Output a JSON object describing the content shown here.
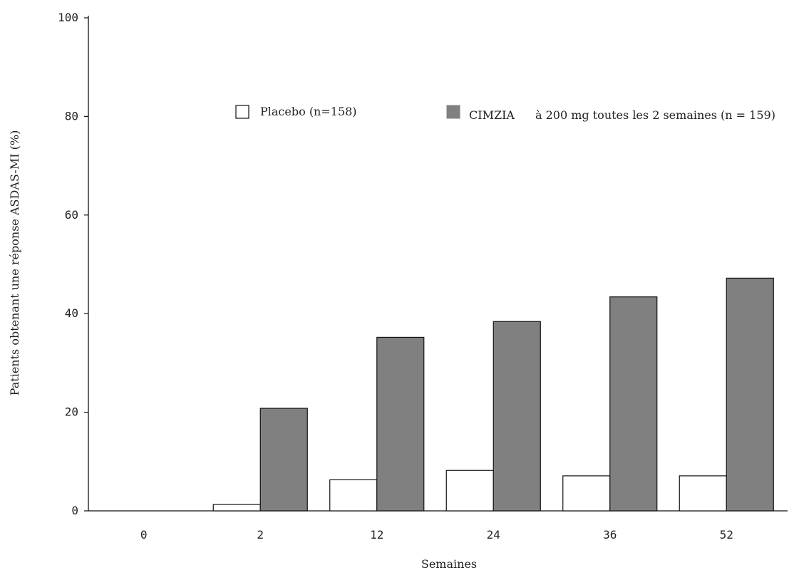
{
  "chart_data": {
    "type": "bar",
    "title": "",
    "xlabel": "Semaines",
    "ylabel": "Patients obtenant une réponse ASDAS-MI (%)",
    "categories": [
      "0",
      "2",
      "12",
      "24",
      "36",
      "52"
    ],
    "yticks": [
      "0",
      "20",
      "40",
      "60",
      "80",
      "100"
    ],
    "ylim": [
      0,
      100
    ],
    "grid": false,
    "legend_position": "top",
    "series": [
      {
        "name": "Placebo (n=158)",
        "values": [
          0,
          1.3,
          6.3,
          8.2,
          7.1,
          7.1
        ],
        "color": "#ffffff",
        "stroke": "#111111"
      },
      {
        "name": "CIMZIA à 200 mg toutes les 2 semaines (n = 159)",
        "values": [
          0,
          20.8,
          35.2,
          38.4,
          43.4,
          47.2
        ],
        "color": "#808080",
        "stroke": "#111111"
      }
    ]
  },
  "legend": {
    "placebo_label": "Placebo (n=158)",
    "cimzia_brand": "CIMZIA",
    "cimzia_rest": "à 200 mg toutes les 2 semaines (n = 159)"
  }
}
